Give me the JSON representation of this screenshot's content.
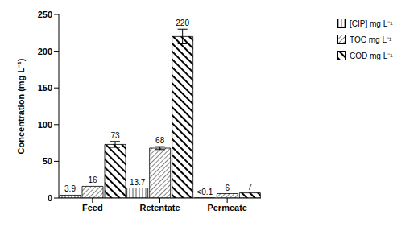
{
  "chart_data": {
    "type": "bar",
    "categories": [
      "Feed",
      "Retentate",
      "Permeate"
    ],
    "series": [
      {
        "name": "[CIP] mg L⁻¹",
        "color": "#555555",
        "values": [
          3.9,
          13.7,
          0.05
        ],
        "value_labels": [
          "3.9",
          "13.7",
          "<0.1"
        ]
      },
      {
        "name": "TOC mg L⁻¹",
        "color": "#333333",
        "values": [
          16,
          68,
          6
        ],
        "errors": [
          null,
          2,
          null
        ]
      },
      {
        "name": "COD mg L⁻¹",
        "color": "#000000",
        "values": [
          73,
          220,
          7
        ],
        "errors": [
          4,
          10,
          null
        ]
      }
    ],
    "ylabel": "Concentration (mg L⁻¹)",
    "ylim": [
      0,
      250
    ],
    "yticks": [
      0,
      50,
      100,
      150,
      200,
      250
    ],
    "grid": false,
    "legend": "upper right",
    "data_labels": true
  }
}
